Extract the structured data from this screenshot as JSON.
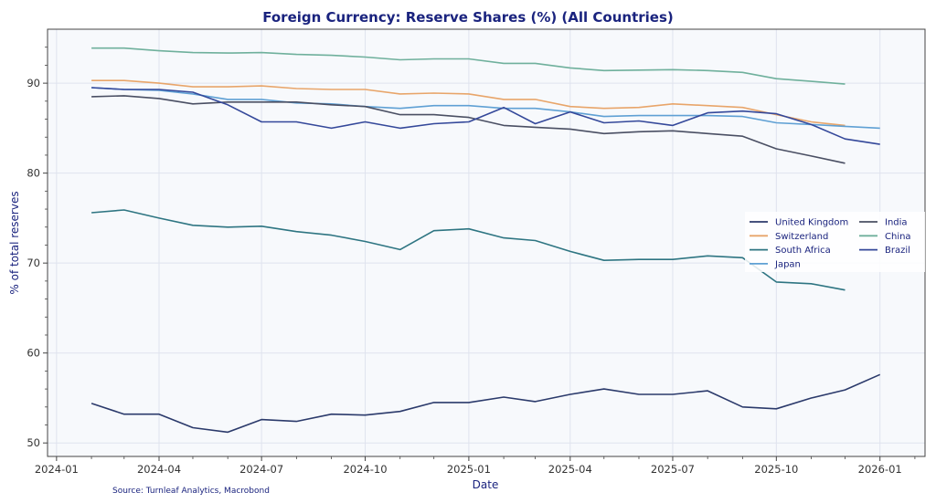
{
  "chart_data": {
    "type": "line",
    "title": "Foreign Currency: Reserve Shares (%) (All Countries)",
    "xlabel": "Date",
    "ylabel": "% of total reserves",
    "source": "Source: Turnleaf Analytics, Macrobond",
    "ylim": [
      48.5,
      96
    ],
    "xlim": [
      "2023-12-24",
      "2026-02-10"
    ],
    "yticks": [
      50,
      60,
      70,
      80,
      90
    ],
    "ytick_labels": [
      "50",
      "60",
      "70",
      "80",
      "90"
    ],
    "xticks": [
      "2024-01-01",
      "2024-04-01",
      "2024-07-01",
      "2024-10-01",
      "2025-01-01",
      "2025-04-01",
      "2025-07-01",
      "2025-10-01",
      "2026-01-01"
    ],
    "xtick_labels": [
      "2024-01",
      "2024-04",
      "2024-07",
      "2024-10",
      "2025-01",
      "2025-04",
      "2025-07",
      "2025-10",
      "2026-01"
    ],
    "grid": true,
    "legend_position": "center-right",
    "x": [
      "2024-02-01",
      "2024-03-01",
      "2024-04-01",
      "2024-05-01",
      "2024-06-01",
      "2024-07-01",
      "2024-08-01",
      "2024-09-01",
      "2024-10-01",
      "2024-11-01",
      "2024-12-01",
      "2025-01-01",
      "2025-02-01",
      "2025-03-01",
      "2025-04-01",
      "2025-05-01",
      "2025-06-01",
      "2025-07-01",
      "2025-08-01",
      "2025-09-01",
      "2025-10-01",
      "2025-11-01",
      "2025-12-01",
      "2026-01-01"
    ],
    "series": [
      {
        "name": "United Kingdom",
        "color": "#2b3a6b",
        "values": [
          54.4,
          53.2,
          53.2,
          51.7,
          51.2,
          52.6,
          52.4,
          53.2,
          53.1,
          53.5,
          54.5,
          54.5,
          55.1,
          54.6,
          55.4,
          56.0,
          55.4,
          55.4,
          55.8,
          54.0,
          53.8,
          55.0,
          55.9,
          57.6
        ]
      },
      {
        "name": "Switzerland",
        "color": "#e8a56a",
        "values": [
          90.3,
          90.3,
          90.0,
          89.6,
          89.6,
          89.7,
          89.4,
          89.3,
          89.3,
          88.8,
          88.9,
          88.8,
          88.2,
          88.2,
          87.4,
          87.2,
          87.3,
          87.7,
          87.5,
          87.3,
          86.5,
          85.7,
          85.3,
          null
        ]
      },
      {
        "name": "South Africa",
        "color": "#2e7582",
        "values": [
          75.6,
          75.9,
          75.0,
          74.2,
          74.0,
          74.1,
          73.5,
          73.1,
          72.4,
          71.5,
          73.6,
          73.8,
          72.8,
          72.5,
          71.3,
          70.3,
          70.4,
          70.4,
          70.8,
          70.6,
          67.9,
          67.7,
          67.0,
          null
        ]
      },
      {
        "name": "Japan",
        "color": "#5fa0d4",
        "values": [
          89.5,
          89.3,
          89.2,
          88.8,
          88.2,
          88.2,
          87.8,
          87.7,
          87.4,
          87.2,
          87.5,
          87.5,
          87.2,
          87.2,
          86.8,
          86.3,
          86.4,
          86.4,
          86.4,
          86.3,
          85.6,
          85.4,
          85.2,
          85.0
        ]
      },
      {
        "name": "India",
        "color": "#4a4f63",
        "values": [
          88.5,
          88.6,
          88.3,
          87.7,
          87.9,
          87.9,
          87.9,
          87.6,
          87.4,
          86.5,
          86.5,
          86.2,
          85.3,
          85.1,
          84.9,
          84.4,
          84.6,
          84.7,
          84.4,
          84.1,
          82.7,
          81.9,
          81.1,
          null
        ]
      },
      {
        "name": "China",
        "color": "#6fb09c",
        "values": [
          93.9,
          93.9,
          93.6,
          93.4,
          93.35,
          93.4,
          93.2,
          93.1,
          92.9,
          92.6,
          92.7,
          92.7,
          92.2,
          92.2,
          91.7,
          91.4,
          91.45,
          91.5,
          91.4,
          91.2,
          90.5,
          90.2,
          89.9,
          null
        ]
      },
      {
        "name": "Brazil",
        "color": "#34489a",
        "values": [
          89.5,
          89.3,
          89.3,
          89.0,
          87.6,
          85.7,
          85.7,
          85.0,
          85.7,
          85.0,
          85.5,
          85.7,
          87.3,
          85.5,
          86.8,
          85.6,
          85.8,
          85.3,
          86.7,
          86.9,
          86.6,
          85.4,
          83.8,
          83.2
        ]
      }
    ]
  }
}
